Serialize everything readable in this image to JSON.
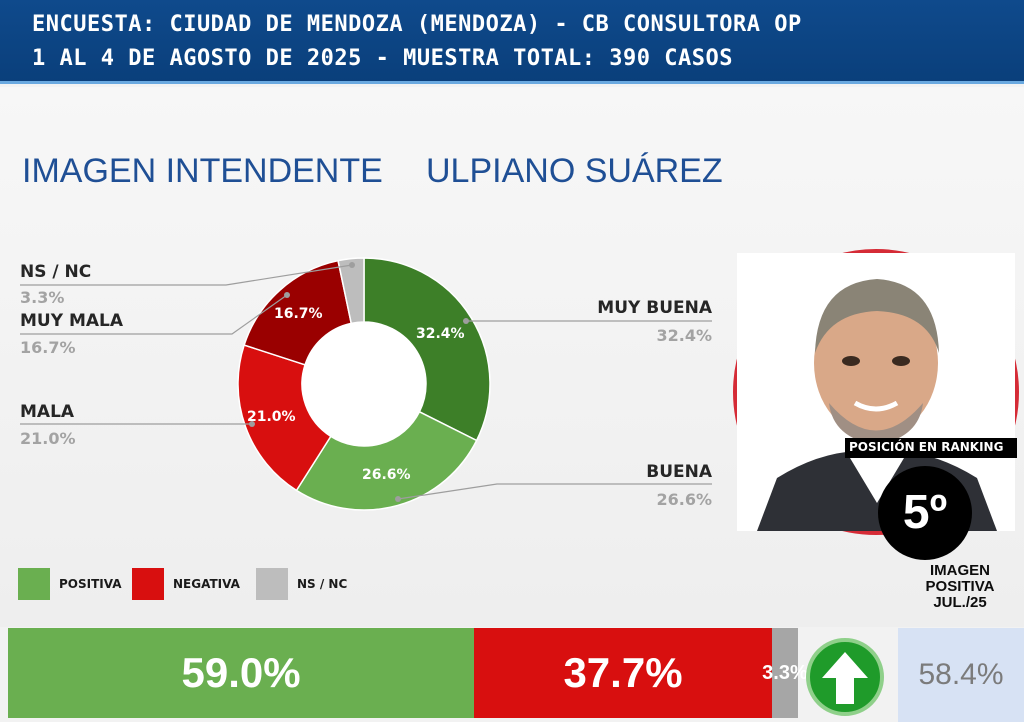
{
  "header": {
    "line1": "ENCUESTA: CIUDAD DE MENDOZA (MENDOZA) - CB CONSULTORA OP",
    "line2": "1 AL 4 DE AGOSTO DE 2025 - MUESTRA TOTAL: 390 CASOS"
  },
  "section": {
    "left_title": "IMAGEN INTENDENTE",
    "right_title": "ULPIANO SUÁREZ"
  },
  "chart_data": [
    {
      "type": "pie",
      "donut": true,
      "slices": [
        {
          "label": "MUY BUENA",
          "value": 32.4,
          "value_text": "32.4%",
          "color": "#3d7f28"
        },
        {
          "label": "BUENA",
          "value": 26.6,
          "value_text": "26.6%",
          "color": "#6aaf50"
        },
        {
          "label": "MALA",
          "value": 21.0,
          "value_text": "21.0%",
          "color": "#d80f0f"
        },
        {
          "label": "MUY MALA",
          "value": 16.7,
          "value_text": "16.7%",
          "color": "#9a0000"
        },
        {
          "label": "NS / NC",
          "value": 3.3,
          "value_text": "3.3%",
          "color": "#bdbdbd"
        }
      ]
    },
    {
      "type": "bar",
      "stacked": true,
      "orientation": "horizontal",
      "series": [
        {
          "name": "POSITIVA",
          "value": 59.0,
          "value_text": "59.0%",
          "color": "#6aaf50"
        },
        {
          "name": "NEGATIVA",
          "value": 37.7,
          "value_text": "37.7%",
          "color": "#d80f0f"
        },
        {
          "name": "NS / NC",
          "value": 3.3,
          "value_text": "3.3%",
          "color": "#a6a6a6"
        }
      ]
    }
  ],
  "photo": {
    "ranking_label": "POSICIÓN EN RANKING",
    "ranking_value": "5º"
  },
  "previous": {
    "title_line1": "IMAGEN",
    "title_line2": "POSITIVA",
    "title_line3": "JUL./25",
    "value": "58.4%",
    "trend_icon": "arrow-up-icon"
  }
}
